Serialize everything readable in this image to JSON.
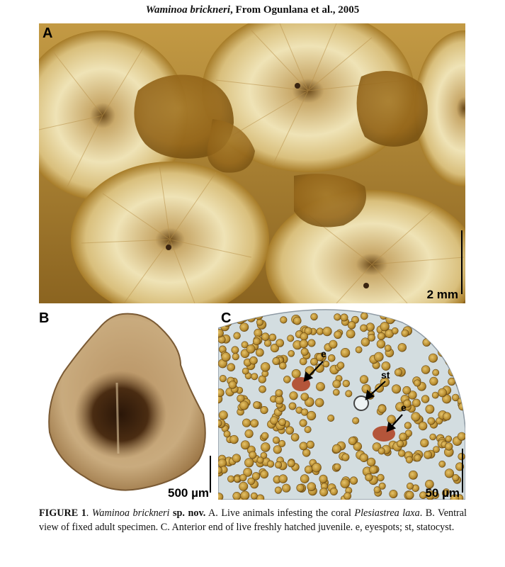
{
  "header": {
    "species": "Waminoa brickneri",
    "source": ", From Ogunlana et al., 2005"
  },
  "panels": {
    "a": {
      "label": "A",
      "scale": "2 mm"
    },
    "b": {
      "label": "B",
      "scale": "500 µm"
    },
    "c": {
      "label": "C",
      "scale": "50 µm",
      "annotations": {
        "eyespot_1": "e",
        "statocyst": "st",
        "eyespot_2": "e"
      }
    }
  },
  "caption": {
    "figure_label": "FIGURE 1",
    "sep": ". ",
    "species": "Waminoa brickneri",
    "sp_nov": " sp. nov.",
    "text_a": "  A. Live animals infesting the coral ",
    "coral": "Plesiastrea laxa",
    "text_b": ".  B. Ventral view of fixed adult specimen. C. Anterior end of live freshly hatched juvenile. e, eyespots; st, statocyst."
  },
  "colors": {
    "coral_base": "#b58a2e",
    "coral_light": "#efe3b6",
    "worm_body": "#c7a77a",
    "worm_dark": "#3a2410",
    "algae": "#c8a04a",
    "eyespot": "#b4553a"
  }
}
